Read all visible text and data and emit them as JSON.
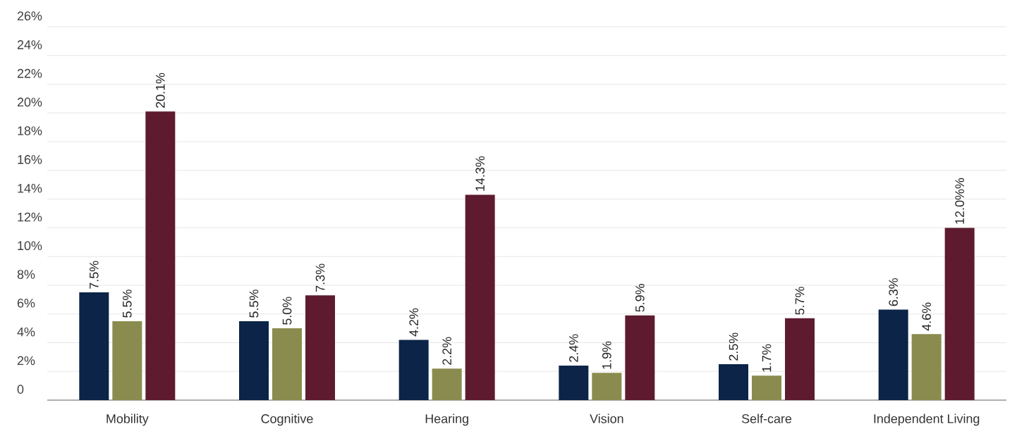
{
  "chart_data": {
    "type": "bar",
    "categories": [
      "Mobility",
      "Cognitive",
      "Hearing",
      "Vision",
      "Self-care",
      "Independent Living"
    ],
    "series": [
      {
        "color": "#0b2447",
        "values": [
          7.5,
          5.5,
          4.2,
          2.4,
          2.5,
          6.3
        ],
        "value_labels": [
          "7.5%",
          "5.5%",
          "4.2%",
          "2.4%",
          "2.5%",
          "6.3%"
        ]
      },
      {
        "color": "#8a8c4f",
        "values": [
          5.5,
          5.0,
          2.2,
          1.9,
          1.7,
          4.6
        ],
        "value_labels": [
          "5.5%",
          "5.0%",
          "2.2%",
          "1.9%",
          "1.7%",
          "4.6%"
        ]
      },
      {
        "color": "#5e1b2f",
        "values": [
          20.1,
          7.3,
          14.3,
          5.9,
          5.7,
          12.0
        ],
        "value_labels": [
          "20.1%",
          "7.3%",
          "14.3%",
          "5.9%",
          "5.7%",
          "12.0%%"
        ]
      }
    ],
    "ylim": [
      0,
      26
    ],
    "yticks": [
      0,
      {
        "value": 2,
        "label": "2%"
      },
      {
        "value": 4,
        "label": "4%"
      },
      {
        "value": 6,
        "label": "6%"
      },
      {
        "value": 8,
        "label": "8%"
      },
      {
        "value": 10,
        "label": "10%"
      },
      {
        "value": 12,
        "label": "12%"
      },
      {
        "value": 14,
        "label": "14%"
      },
      {
        "value": 16,
        "label": "16%"
      },
      {
        "value": 18,
        "label": "18%"
      },
      {
        "value": 20,
        "label": "20%"
      },
      {
        "value": 22,
        "label": "22%"
      },
      {
        "value": 24,
        "label": "24%"
      },
      {
        "value": 26,
        "label": "26%"
      }
    ],
    "grid": "y"
  }
}
